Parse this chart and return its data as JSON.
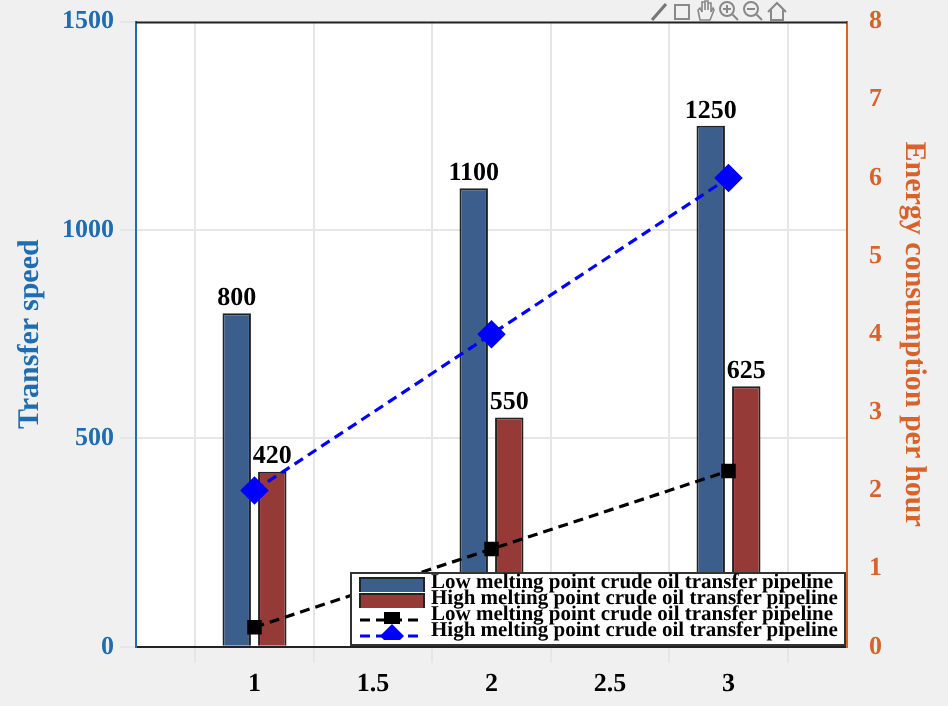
{
  "chart_data": {
    "type": "bar",
    "x": [
      1,
      2,
      3
    ],
    "xlim": [
      0.5,
      3.5
    ],
    "xticks": [
      1,
      1.5,
      2,
      2.5,
      3
    ],
    "ylim": [
      0,
      1500
    ],
    "yticks": [
      0,
      500,
      1000,
      1500
    ],
    "y2lim": [
      0,
      8
    ],
    "y2ticks": [
      0,
      1,
      2,
      3,
      4,
      5,
      6,
      7,
      8
    ],
    "ylabel": "Transfer speed",
    "y2label": "Energy consumption per hour",
    "grid": true,
    "legend": "bottom right",
    "series": [
      {
        "name": "Low melting point crude oil transfer pipeline",
        "color": "#3b5e8c",
        "values": [
          800,
          1100,
          1250
        ],
        "value_labels": [
          "800",
          "1100",
          "1250"
        ]
      },
      {
        "name": "High melting point crude oil transfer pipeline",
        "color": "#963a38",
        "values": [
          420,
          550,
          625
        ],
        "value_labels": [
          "420",
          "550",
          "625"
        ]
      },
      {
        "name": "Low melting point crude oil transfer pipeline",
        "type": "line",
        "axis": "y2",
        "color": "#000000",
        "marker": "square",
        "line_style": "dashed",
        "values": [
          0.25,
          1.25,
          2.25
        ]
      },
      {
        "name": "High melting point crude oil transfer pipeline",
        "type": "line",
        "axis": "y2",
        "color": "#0000ff",
        "marker": "diamond",
        "line_style": "dashed",
        "values": [
          2,
          4,
          6
        ]
      }
    ]
  }
}
